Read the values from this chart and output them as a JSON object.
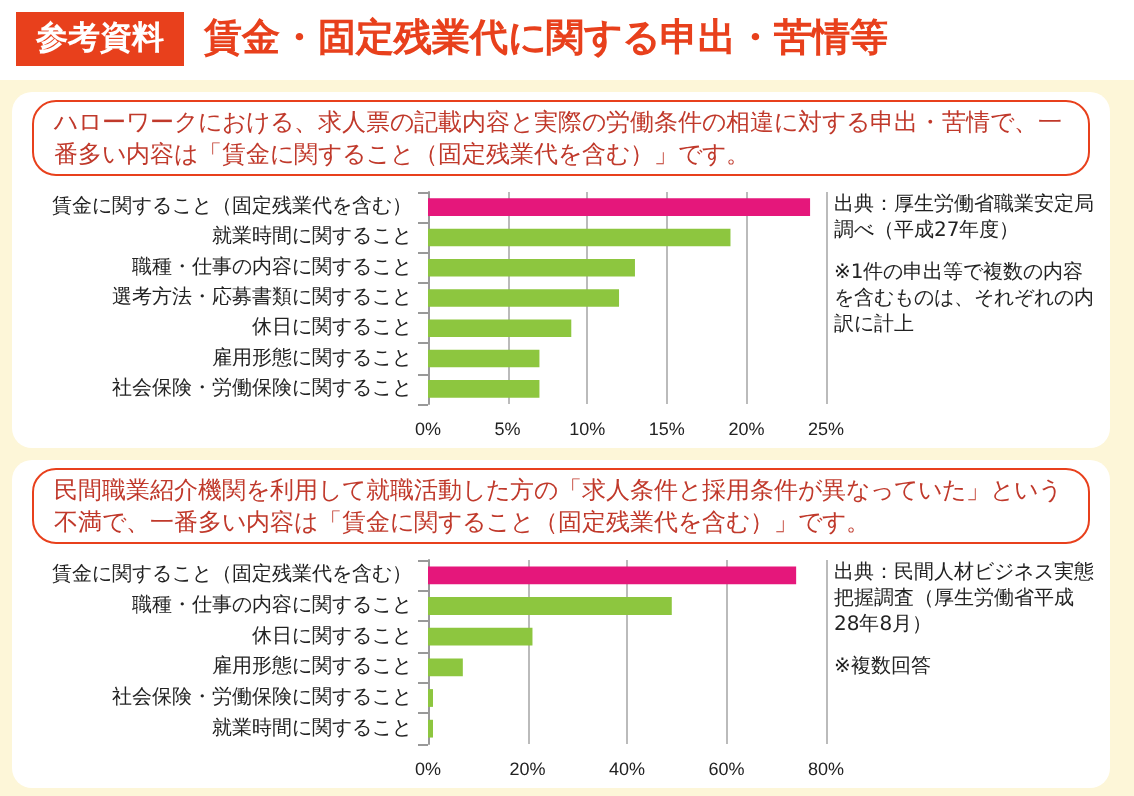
{
  "chart_data": [
    {
      "type": "bar",
      "orientation": "horizontal",
      "title": "賃金・固定残業代に関する申出・苦情等",
      "subtitle": "ハローワークにおける、求人票の記載内容と実際の労働条件の相違に対する申出・苦情で、一番多い内容は「賃金に関すること（固定残業代を含む）」です。",
      "annotations": [
        "参考資料",
        "出典：厚生労働省職業安定局調べ（平成27年度）",
        "※1件の申出等で複数の内容を含むものは、それぞれの内訳に計上"
      ],
      "categories": [
        "賃金に関すること（固定残業代を含む）",
        "就業時間に関すること",
        "職種・仕事の内容に関すること",
        "選考方法・応募書類に関すること",
        "休日に関すること",
        "雇用形態に関すること",
        "社会保険・労働保険に関すること"
      ],
      "values": [
        24,
        19,
        13,
        12,
        9,
        7,
        7
      ],
      "colors": [
        "#e5177b",
        "#8dc63f",
        "#8dc63f",
        "#8dc63f",
        "#8dc63f",
        "#8dc63f",
        "#8dc63f"
      ],
      "xlim": [
        0,
        25
      ],
      "xticks": [
        {
          "value": 0,
          "label": "0%"
        },
        {
          "value": 5,
          "label": "5%"
        },
        {
          "value": 10,
          "label": "10%"
        },
        {
          "value": 15,
          "label": "15%"
        },
        {
          "value": 20,
          "label": "20%"
        },
        {
          "value": 25,
          "label": "25%"
        }
      ],
      "grid": "x"
    },
    {
      "type": "bar",
      "orientation": "horizontal",
      "subtitle": "民間職業紹介機関を利用して就職活動した方の「求人条件と採用条件が異なっていた」という不満で、一番多い内容は「賃金に関すること（固定残業代を含む）」です。",
      "annotations": [
        "出典：民間人材ビジネス実態把握調査（厚生労働省平成28年8月）",
        "※複数回答"
      ],
      "categories": [
        "賃金に関すること（固定残業代を含む）",
        "職種・仕事の内容に関すること",
        "休日に関すること",
        "雇用形態に関すること",
        "社会保険・労働保険に関すること",
        "就業時間に関すること"
      ],
      "values": [
        74,
        49,
        21,
        7,
        1,
        1
      ],
      "colors": [
        "#e5177b",
        "#8dc63f",
        "#8dc63f",
        "#8dc63f",
        "#8dc63f",
        "#8dc63f"
      ],
      "xlim": [
        0,
        80
      ],
      "xticks": [
        {
          "value": 0,
          "label": "0%"
        },
        {
          "value": 20,
          "label": "20%"
        },
        {
          "value": 40,
          "label": "40%"
        },
        {
          "value": 60,
          "label": "60%"
        },
        {
          "value": 80,
          "label": "80%"
        }
      ],
      "grid": "x"
    }
  ]
}
